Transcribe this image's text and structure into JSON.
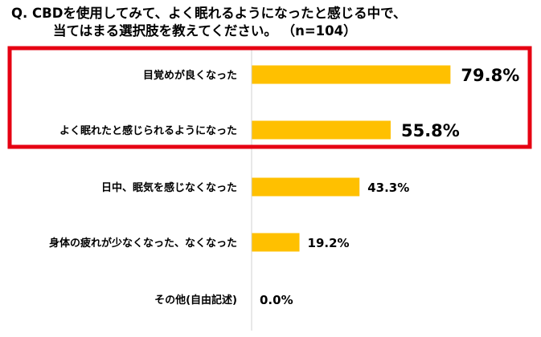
{
  "chart_data": {
    "type": "bar",
    "orientation": "horizontal",
    "title_line1": "Q. CBDを使用してみて、よく眠れるようになったと感じる中で、",
    "title_line2": "当てはまる選択肢を教えてください。",
    "sample_size": "（n=104）",
    "categories": [
      "目覚めが良くなった",
      "よく眠れたと感じられるようになった",
      "日中、眠気を感じなくなった",
      "身体の疲れが少なくなった、なくなった",
      "その他(自由記述)"
    ],
    "values": [
      79.8,
      55.8,
      43.3,
      19.2,
      0.0
    ],
    "value_labels": [
      "79.8%",
      "55.8%",
      "43.3%",
      "19.2%",
      "0.0%"
    ],
    "highlighted_categories": [
      0,
      1
    ],
    "bar_color": "#FFC000",
    "highlight_color": "#E60012",
    "xlim": [
      0,
      100
    ],
    "grid": false,
    "legend": "none"
  }
}
